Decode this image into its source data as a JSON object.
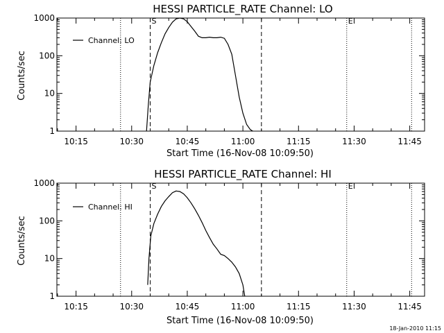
{
  "chart_data": [
    {
      "type": "line",
      "title": "HESSI PARTICLE_RATE Channel: LO",
      "xlabel": "Start Time (16-Nov-08 10:09:50)",
      "ylabel": "Counts/sec",
      "y_scale": "log",
      "ylim": [
        1,
        1000
      ],
      "xlim": [
        "10:09:50",
        "11:49:00"
      ],
      "x_ticks": [
        "10:15",
        "10:30",
        "10:45",
        "11:00",
        "11:15",
        "11:30",
        "11:45"
      ],
      "y_ticks": [
        "1",
        "10",
        "100",
        "1000"
      ],
      "legend": {
        "placement": "top-left",
        "entries": [
          "Channel: LO"
        ]
      },
      "vlines_dotted": [
        "10:27:00",
        "11:28:00",
        "11:45:30"
      ],
      "vlines_dashed": [
        {
          "x": "10:35:00",
          "label": "S"
        },
        {
          "x": "11:05:00",
          "label": ""
        }
      ],
      "markers": [
        {
          "x": "10:35:00",
          "label": "S"
        },
        {
          "x": "11:28:00",
          "label": "E"
        }
      ],
      "series": [
        {
          "name": "Channel: LO",
          "x": [
            "10:34:00",
            "10:34:30",
            "10:35:00",
            "10:36:00",
            "10:37:00",
            "10:38:00",
            "10:39:00",
            "10:40:00",
            "10:41:00",
            "10:42:00",
            "10:43:00",
            "10:44:00",
            "10:45:00",
            "10:46:00",
            "10:47:00",
            "10:48:00",
            "10:49:00",
            "10:50:00",
            "10:51:00",
            "10:52:00",
            "10:53:00",
            "10:54:00",
            "10:55:00",
            "10:56:00",
            "10:57:00",
            "10:58:00",
            "10:59:00",
            "11:00:00",
            "11:01:00",
            "11:02:00",
            "11:02:40"
          ],
          "y": [
            1,
            5,
            20,
            55,
            120,
            220,
            380,
            560,
            780,
            950,
            1000,
            950,
            800,
            600,
            450,
            330,
            300,
            300,
            310,
            300,
            300,
            310,
            290,
            200,
            110,
            30,
            8,
            3,
            1.5,
            1.1,
            1
          ]
        }
      ]
    },
    {
      "type": "line",
      "title": "HESSI PARTICLE_RATE Channel: HI",
      "xlabel": "Start Time (16-Nov-08 10:09:50)",
      "ylabel": "Counts/sec",
      "y_scale": "log",
      "ylim": [
        1,
        1000
      ],
      "xlim": [
        "10:09:50",
        "11:49:00"
      ],
      "x_ticks": [
        "10:15",
        "10:30",
        "10:45",
        "11:00",
        "11:15",
        "11:30",
        "11:45"
      ],
      "y_ticks": [
        "1",
        "10",
        "100",
        "1000"
      ],
      "legend": {
        "placement": "top-left",
        "entries": [
          "Channel: HI"
        ]
      },
      "vlines_dotted": [
        "10:27:00",
        "11:28:00",
        "11:45:30"
      ],
      "vlines_dashed": [
        {
          "x": "10:35:00",
          "label": "S"
        },
        {
          "x": "11:05:00",
          "label": ""
        }
      ],
      "markers": [
        {
          "x": "10:35:00",
          "label": "S"
        },
        {
          "x": "11:28:00",
          "label": "E"
        }
      ],
      "series": [
        {
          "name": "Channel: HI",
          "x": [
            "10:34:20",
            "10:34:40",
            "10:35:10",
            "10:36:00",
            "10:37:00",
            "10:38:00",
            "10:39:00",
            "10:40:00",
            "10:41:00",
            "10:42:00",
            "10:43:00",
            "10:44:00",
            "10:45:00",
            "10:46:00",
            "10:47:00",
            "10:48:00",
            "10:49:00",
            "10:50:00",
            "10:51:00",
            "10:52:00",
            "10:53:00",
            "10:54:00",
            "10:55:00",
            "10:56:00",
            "10:57:00",
            "10:58:00",
            "10:59:00",
            "11:00:00",
            "11:00:30"
          ],
          "y": [
            2,
            10,
            40,
            85,
            150,
            240,
            340,
            440,
            560,
            620,
            600,
            520,
            410,
            300,
            210,
            140,
            90,
            55,
            36,
            24,
            18,
            13,
            12,
            10,
            8,
            6,
            4,
            2,
            1
          ]
        }
      ]
    }
  ],
  "footer": {
    "date_stamp": "18-Jan-2010 11:15"
  }
}
